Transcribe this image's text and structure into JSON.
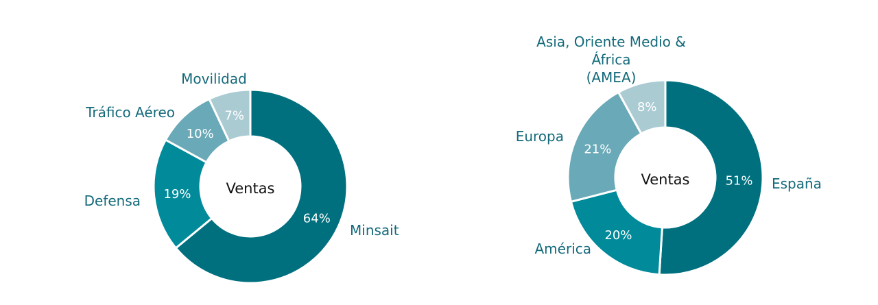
{
  "chart_data": [
    {
      "type": "pie",
      "donut": true,
      "center_label": "Ventas",
      "categories": [
        "Minsait",
        "Defensa",
        "Tráfico Aéreo",
        "Movilidad"
      ],
      "values": [
        64,
        19,
        10,
        7
      ],
      "value_labels": [
        "64%",
        "19%",
        "10%",
        "7%"
      ],
      "colors": [
        "#00707f",
        "#008a9a",
        "#6aa9b7",
        "#abcbd3"
      ]
    },
    {
      "type": "pie",
      "donut": true,
      "center_label": "Ventas",
      "categories": [
        "España",
        "América",
        "Europa",
        "Asia, Oriente Medio & África (AMEA)"
      ],
      "category_lines": [
        [
          "España"
        ],
        [
          "América"
        ],
        [
          "Europa"
        ],
        [
          "Asia, Oriente Medio &",
          "África",
          "(AMEA)"
        ]
      ],
      "values": [
        51,
        20,
        21,
        8
      ],
      "value_labels": [
        "51%",
        "20%",
        "21%",
        "8%"
      ],
      "colors": [
        "#00707f",
        "#008a9a",
        "#6aa9b7",
        "#abcbd3"
      ]
    }
  ]
}
